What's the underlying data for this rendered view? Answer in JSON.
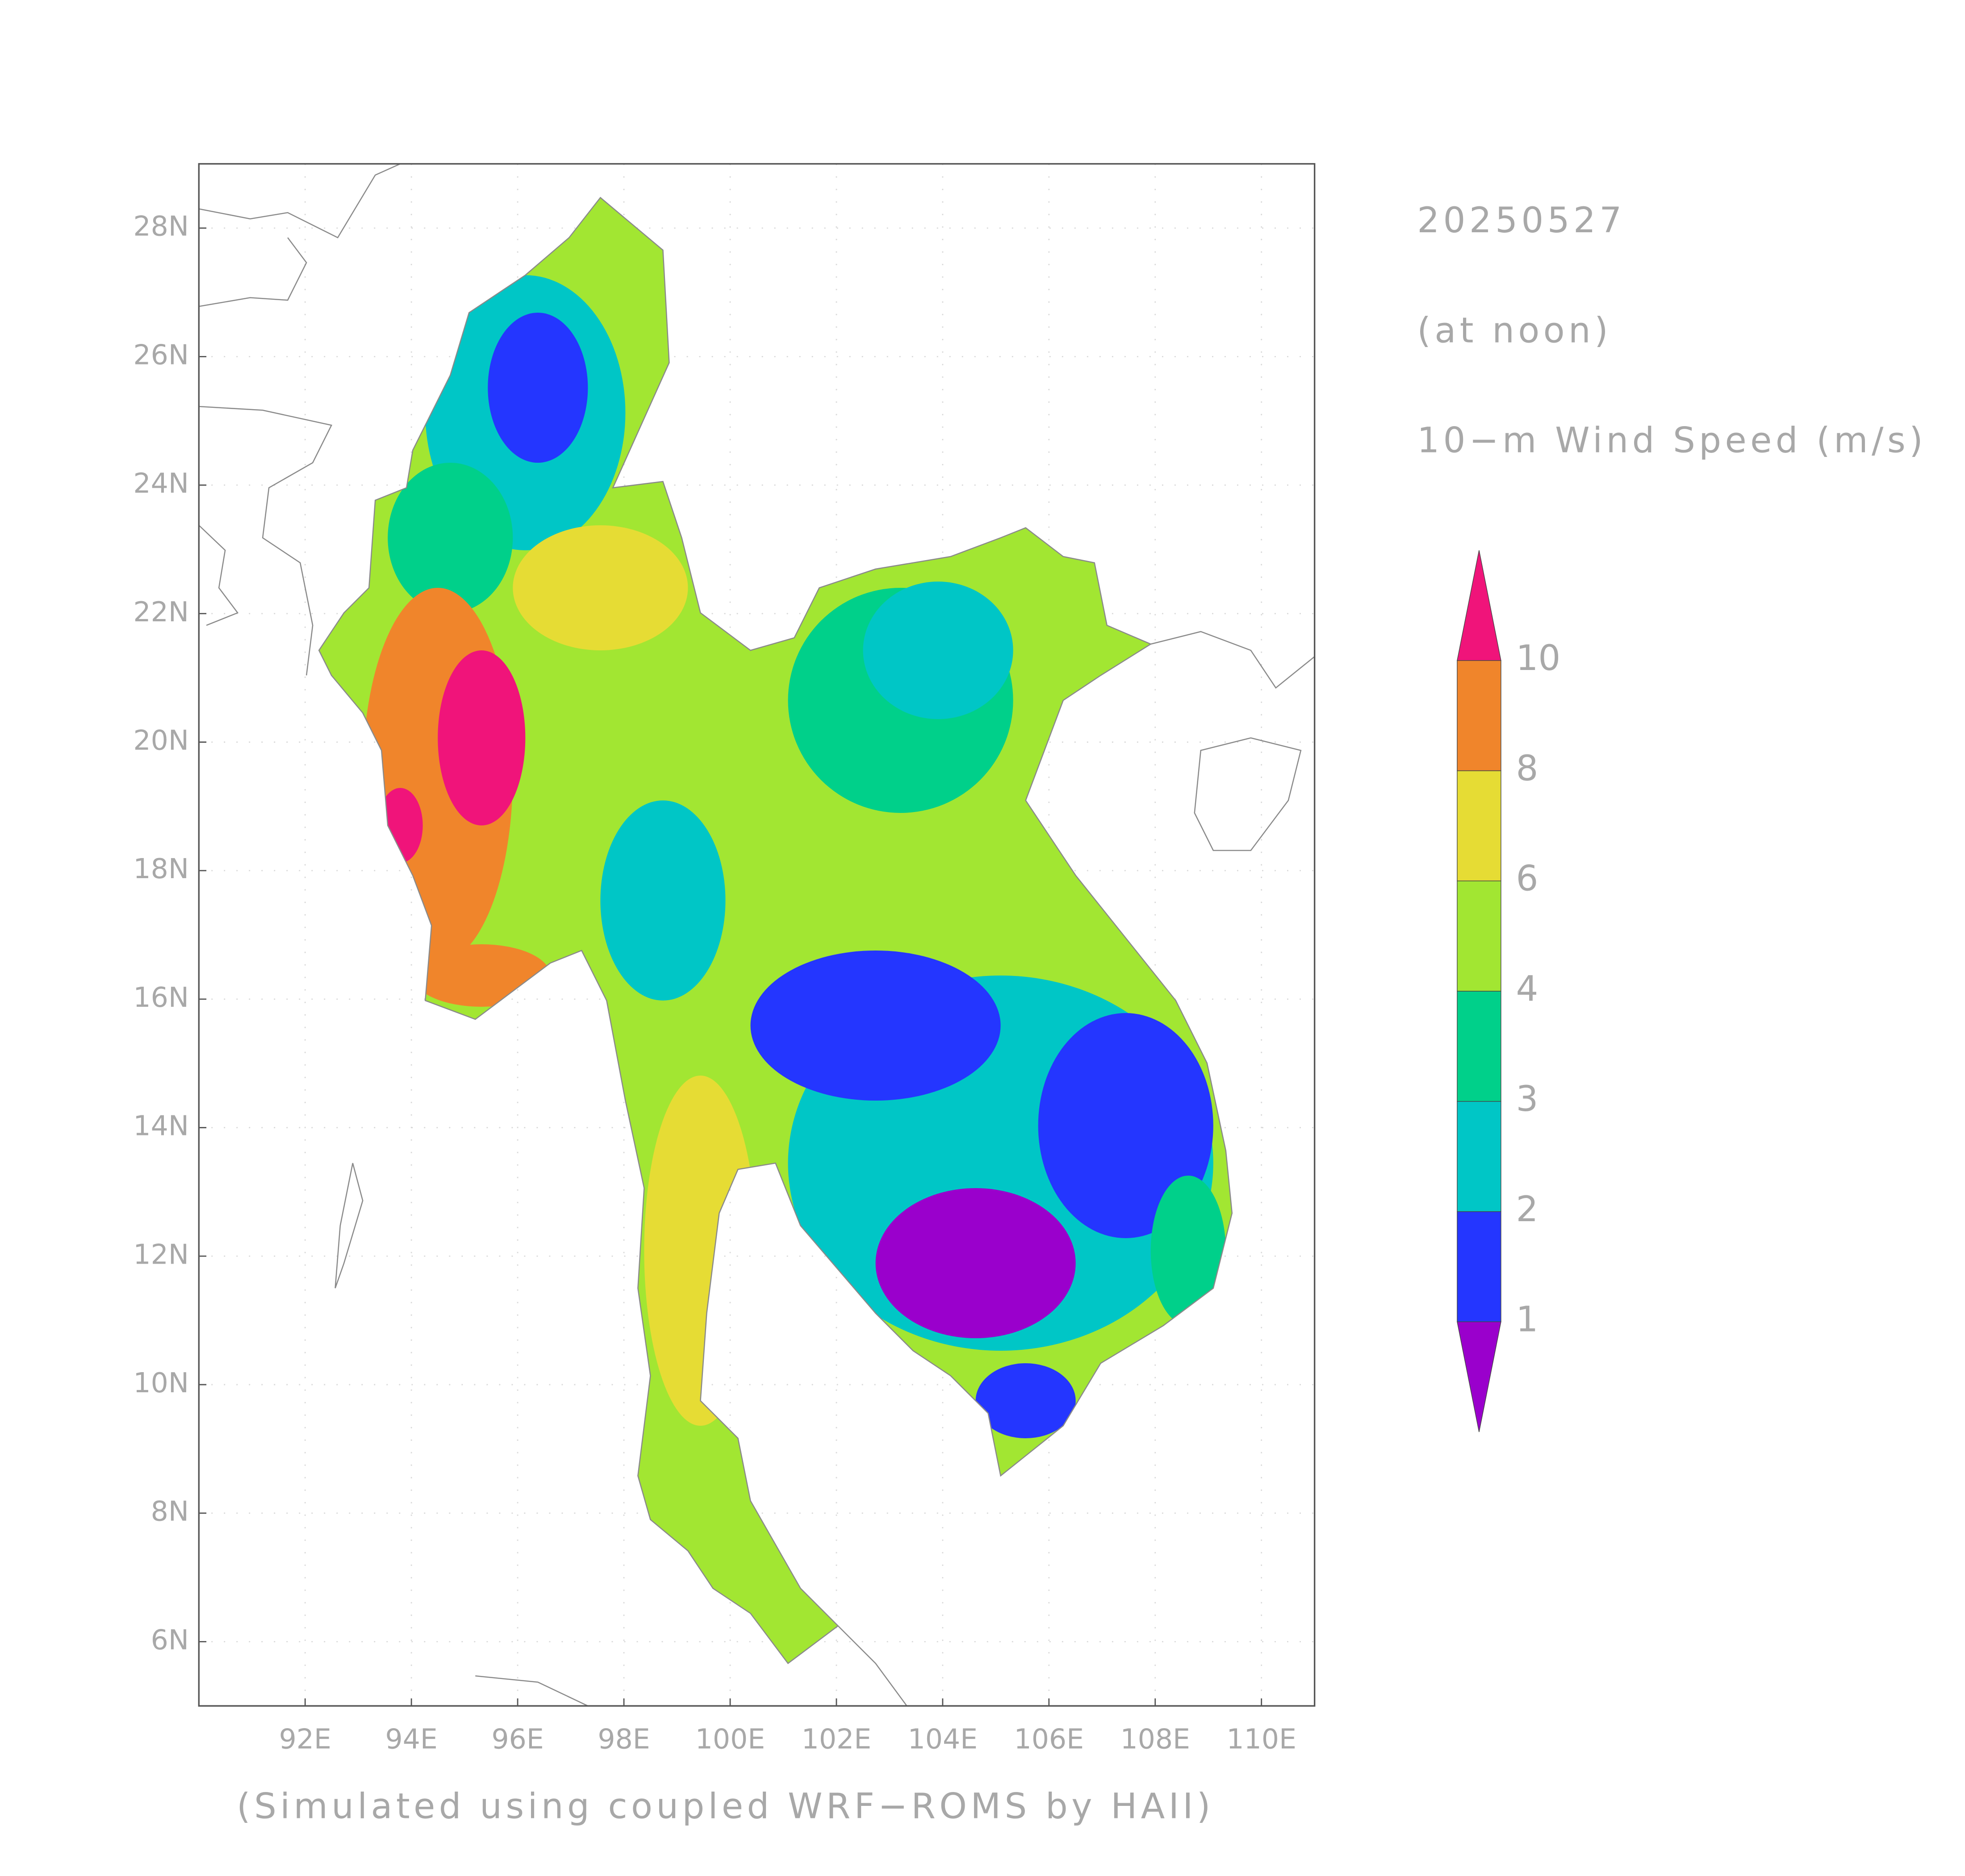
{
  "header": {
    "date": "20250527",
    "time": "(at noon)",
    "variable": "10−m Wind Speed (m/s)"
  },
  "footer": {
    "credit": "(Simulated using coupled WRF−ROMS by HAII)"
  },
  "map": {
    "xlim": [
      90,
      111
    ],
    "ylim": [
      5,
      29
    ],
    "grid": true,
    "xticks": [
      {
        "value": 92,
        "label": "92E"
      },
      {
        "value": 94,
        "label": "94E"
      },
      {
        "value": 96,
        "label": "96E"
      },
      {
        "value": 98,
        "label": "98E"
      },
      {
        "value": 100,
        "label": "100E"
      },
      {
        "value": 102,
        "label": "102E"
      },
      {
        "value": 104,
        "label": "104E"
      },
      {
        "value": 106,
        "label": "106E"
      },
      {
        "value": 108,
        "label": "108E"
      },
      {
        "value": 110,
        "label": "110E"
      }
    ],
    "yticks": [
      {
        "value": 6,
        "label": "6N"
      },
      {
        "value": 8,
        "label": "8N"
      },
      {
        "value": 10,
        "label": "10N"
      },
      {
        "value": 12,
        "label": "12N"
      },
      {
        "value": 14,
        "label": "14N"
      },
      {
        "value": 16,
        "label": "16N"
      },
      {
        "value": 18,
        "label": "18N"
      },
      {
        "value": 20,
        "label": "20N"
      },
      {
        "value": 22,
        "label": "22N"
      },
      {
        "value": 24,
        "label": "24N"
      },
      {
        "value": 26,
        "label": "26N"
      },
      {
        "value": 28,
        "label": "28N"
      }
    ]
  },
  "legend": {
    "levels": [
      1,
      2,
      3,
      4,
      6,
      8,
      10
    ],
    "colors": [
      "#9a00cc",
      "#2436ff",
      "#00c6c6",
      "#00d08a",
      "#a2e632",
      "#e6dc34",
      "#f0852b",
      "#f0147a"
    ]
  }
}
